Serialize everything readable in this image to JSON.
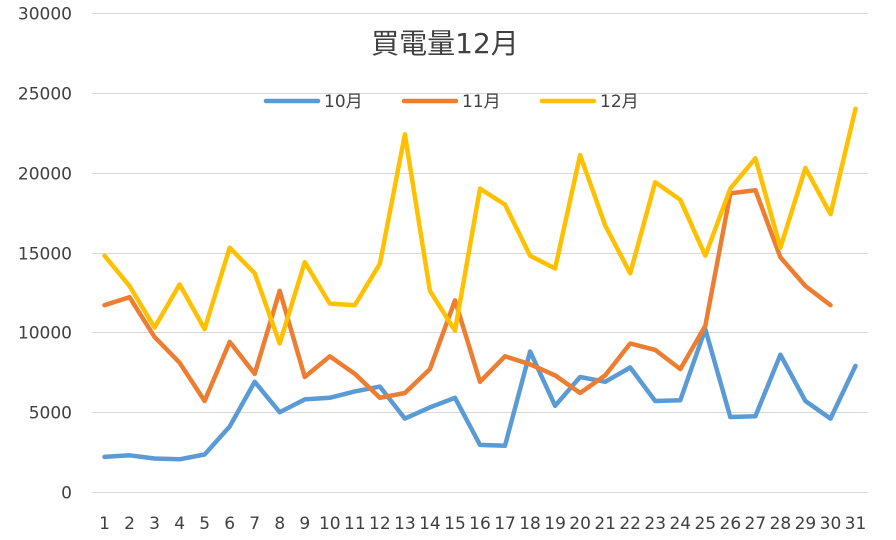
{
  "chart_data": {
    "type": "line",
    "title": "買電量12月",
    "xlabel": "",
    "ylabel": "",
    "x": [
      1,
      2,
      3,
      4,
      5,
      6,
      7,
      8,
      9,
      10,
      11,
      12,
      13,
      14,
      15,
      16,
      17,
      18,
      19,
      20,
      21,
      22,
      23,
      24,
      25,
      26,
      27,
      28,
      29,
      30,
      31
    ],
    "ylim": [
      0,
      30000
    ],
    "yticks": [
      0,
      5000,
      10000,
      15000,
      20000,
      25000,
      30000
    ],
    "grid": true,
    "legend_position": "top",
    "series": [
      {
        "name": "10月",
        "color": "#5B9BD5",
        "values": [
          2200,
          2300,
          2100,
          2050,
          2350,
          4100,
          6900,
          5000,
          5800,
          5900,
          6300,
          6600,
          4600,
          5300,
          5900,
          2950,
          2900,
          8800,
          5400,
          7200,
          6900,
          7800,
          5700,
          5750,
          10200,
          4700,
          4750,
          8600,
          5700,
          4600,
          7900
        ]
      },
      {
        "name": "11月",
        "color": "#ED7D31",
        "values": [
          11700,
          12200,
          9700,
          8100,
          5700,
          9400,
          7400,
          12600,
          7200,
          8500,
          7400,
          5900,
          6200,
          7700,
          12000,
          6900,
          8500,
          8000,
          7300,
          6200,
          7300,
          9300,
          8900,
          7700,
          10400,
          18700,
          18900,
          14700,
          12900,
          11700,
          null
        ]
      },
      {
        "name": "12月",
        "color": "#FFC000",
        "values": [
          14800,
          12900,
          10300,
          13000,
          10200,
          15300,
          13700,
          9300,
          14400,
          11800,
          11700,
          14300,
          22400,
          12600,
          10100,
          19000,
          18000,
          14800,
          14000,
          21100,
          16700,
          13700,
          19400,
          18300,
          14800,
          19000,
          20900,
          15300,
          20300,
          17400,
          24000
        ]
      }
    ]
  }
}
